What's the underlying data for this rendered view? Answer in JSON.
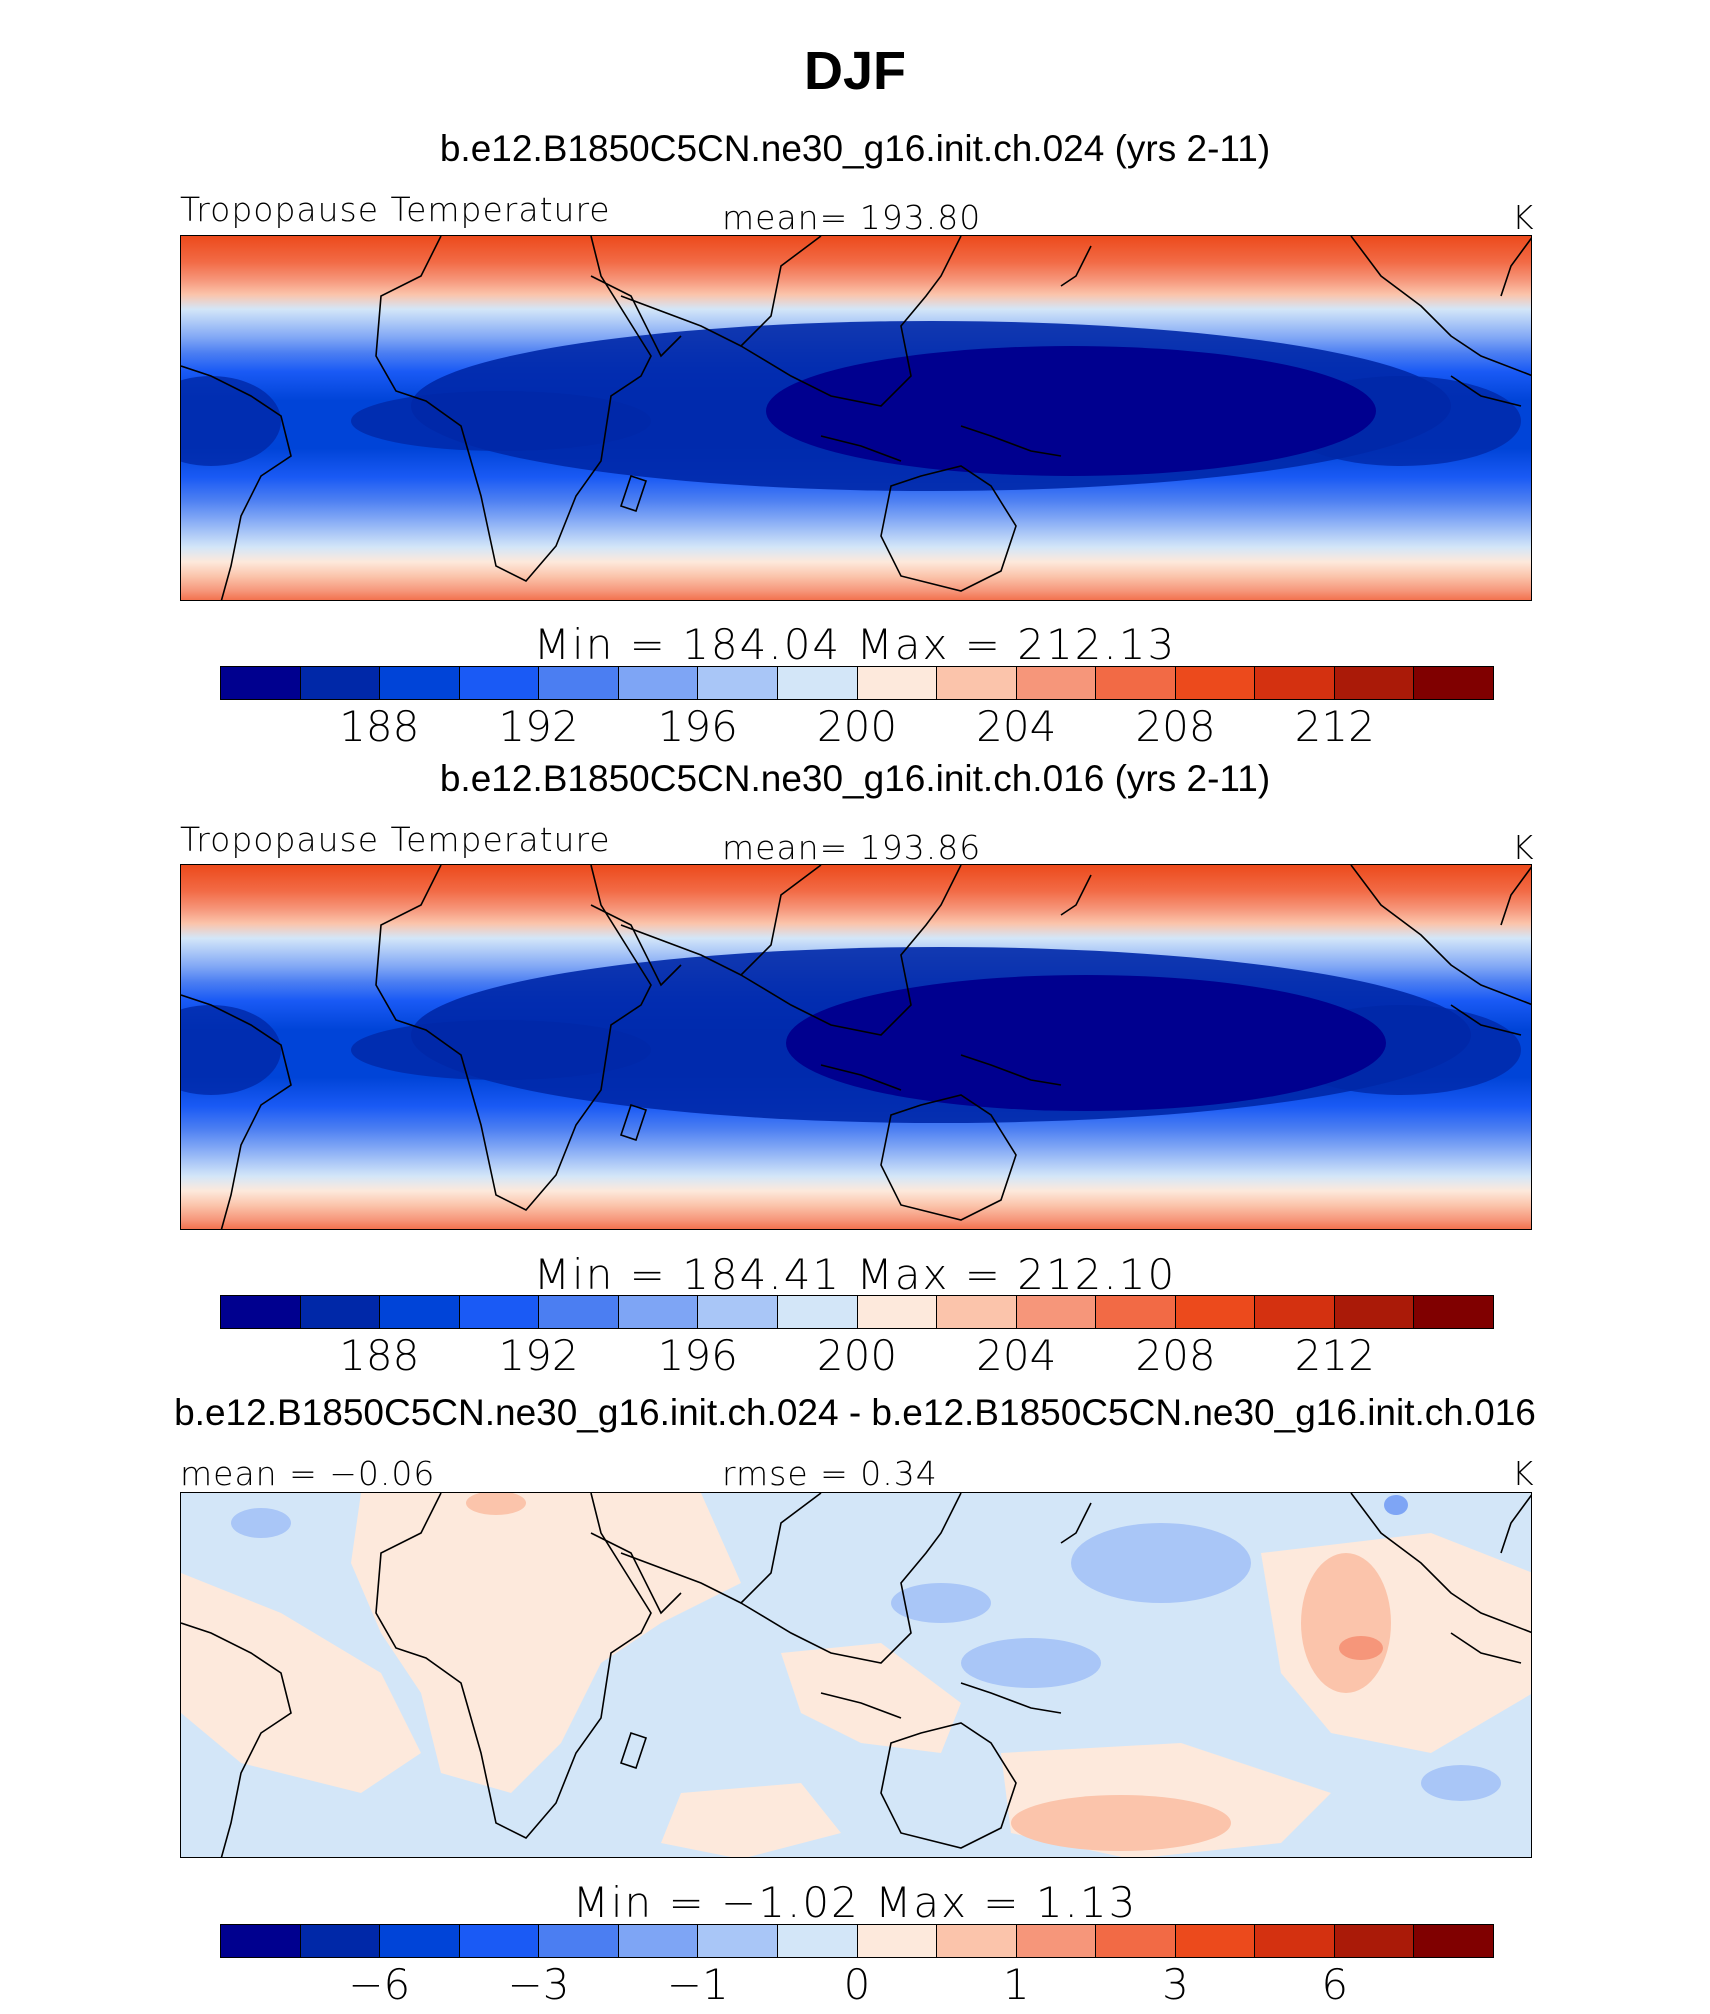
{
  "title": "DJF",
  "panels": [
    {
      "case": "b.e12.B1850C5CN.ne30_g16.init.ch.024 (yrs 2-11)",
      "left_label": "Tropopause Temperature",
      "center_label": "mean= 193.80",
      "unit": "K",
      "minmax": "Min = 184.04 Max = 212.13",
      "colorbar": {
        "colors": [
          "#00008f",
          "#0028a8",
          "#0044d8",
          "#1a5af5",
          "#4b7ef2",
          "#7ea5f5",
          "#a9c6f7",
          "#d3e6f8",
          "#fde9dc",
          "#fbc4ab",
          "#f6967a",
          "#f26a45",
          "#ec4a1c",
          "#d43110",
          "#aa1a08",
          "#800000"
        ],
        "ticks": [
          "188",
          "192",
          "196",
          "200",
          "204",
          "208",
          "212"
        ]
      }
    },
    {
      "case": "b.e12.B1850C5CN.ne30_g16.init.ch.016 (yrs 2-11)",
      "left_label": "Tropopause Temperature",
      "center_label": "mean= 193.86",
      "unit": "K",
      "minmax": "Min = 184.41 Max = 212.10",
      "colorbar": {
        "colors": [
          "#00008f",
          "#0028a8",
          "#0044d8",
          "#1a5af5",
          "#4b7ef2",
          "#7ea5f5",
          "#a9c6f7",
          "#d3e6f8",
          "#fde9dc",
          "#fbc4ab",
          "#f6967a",
          "#f26a45",
          "#ec4a1c",
          "#d43110",
          "#aa1a08",
          "#800000"
        ],
        "ticks": [
          "188",
          "192",
          "196",
          "200",
          "204",
          "208",
          "212"
        ]
      }
    },
    {
      "case": "b.e12.B1850C5CN.ne30_g16.init.ch.024 - b.e12.B1850C5CN.ne30_g16.init.ch.016",
      "left_label": "mean = −0.06",
      "center_label": "rmse = 0.34",
      "unit": "K",
      "minmax": "Min = −1.02 Max = 1.13",
      "colorbar": {
        "colors": [
          "#00008f",
          "#0028a8",
          "#0044d8",
          "#1a5af5",
          "#4b7ef2",
          "#7ea5f5",
          "#a9c6f7",
          "#d3e6f8",
          "#fde9dc",
          "#fbc4ab",
          "#f6967a",
          "#f26a45",
          "#ec4a1c",
          "#d43110",
          "#aa1a08",
          "#800000"
        ],
        "ticks": [
          "−6",
          "−3",
          "−1",
          "0",
          "1",
          "3",
          "6"
        ]
      }
    }
  ]
}
